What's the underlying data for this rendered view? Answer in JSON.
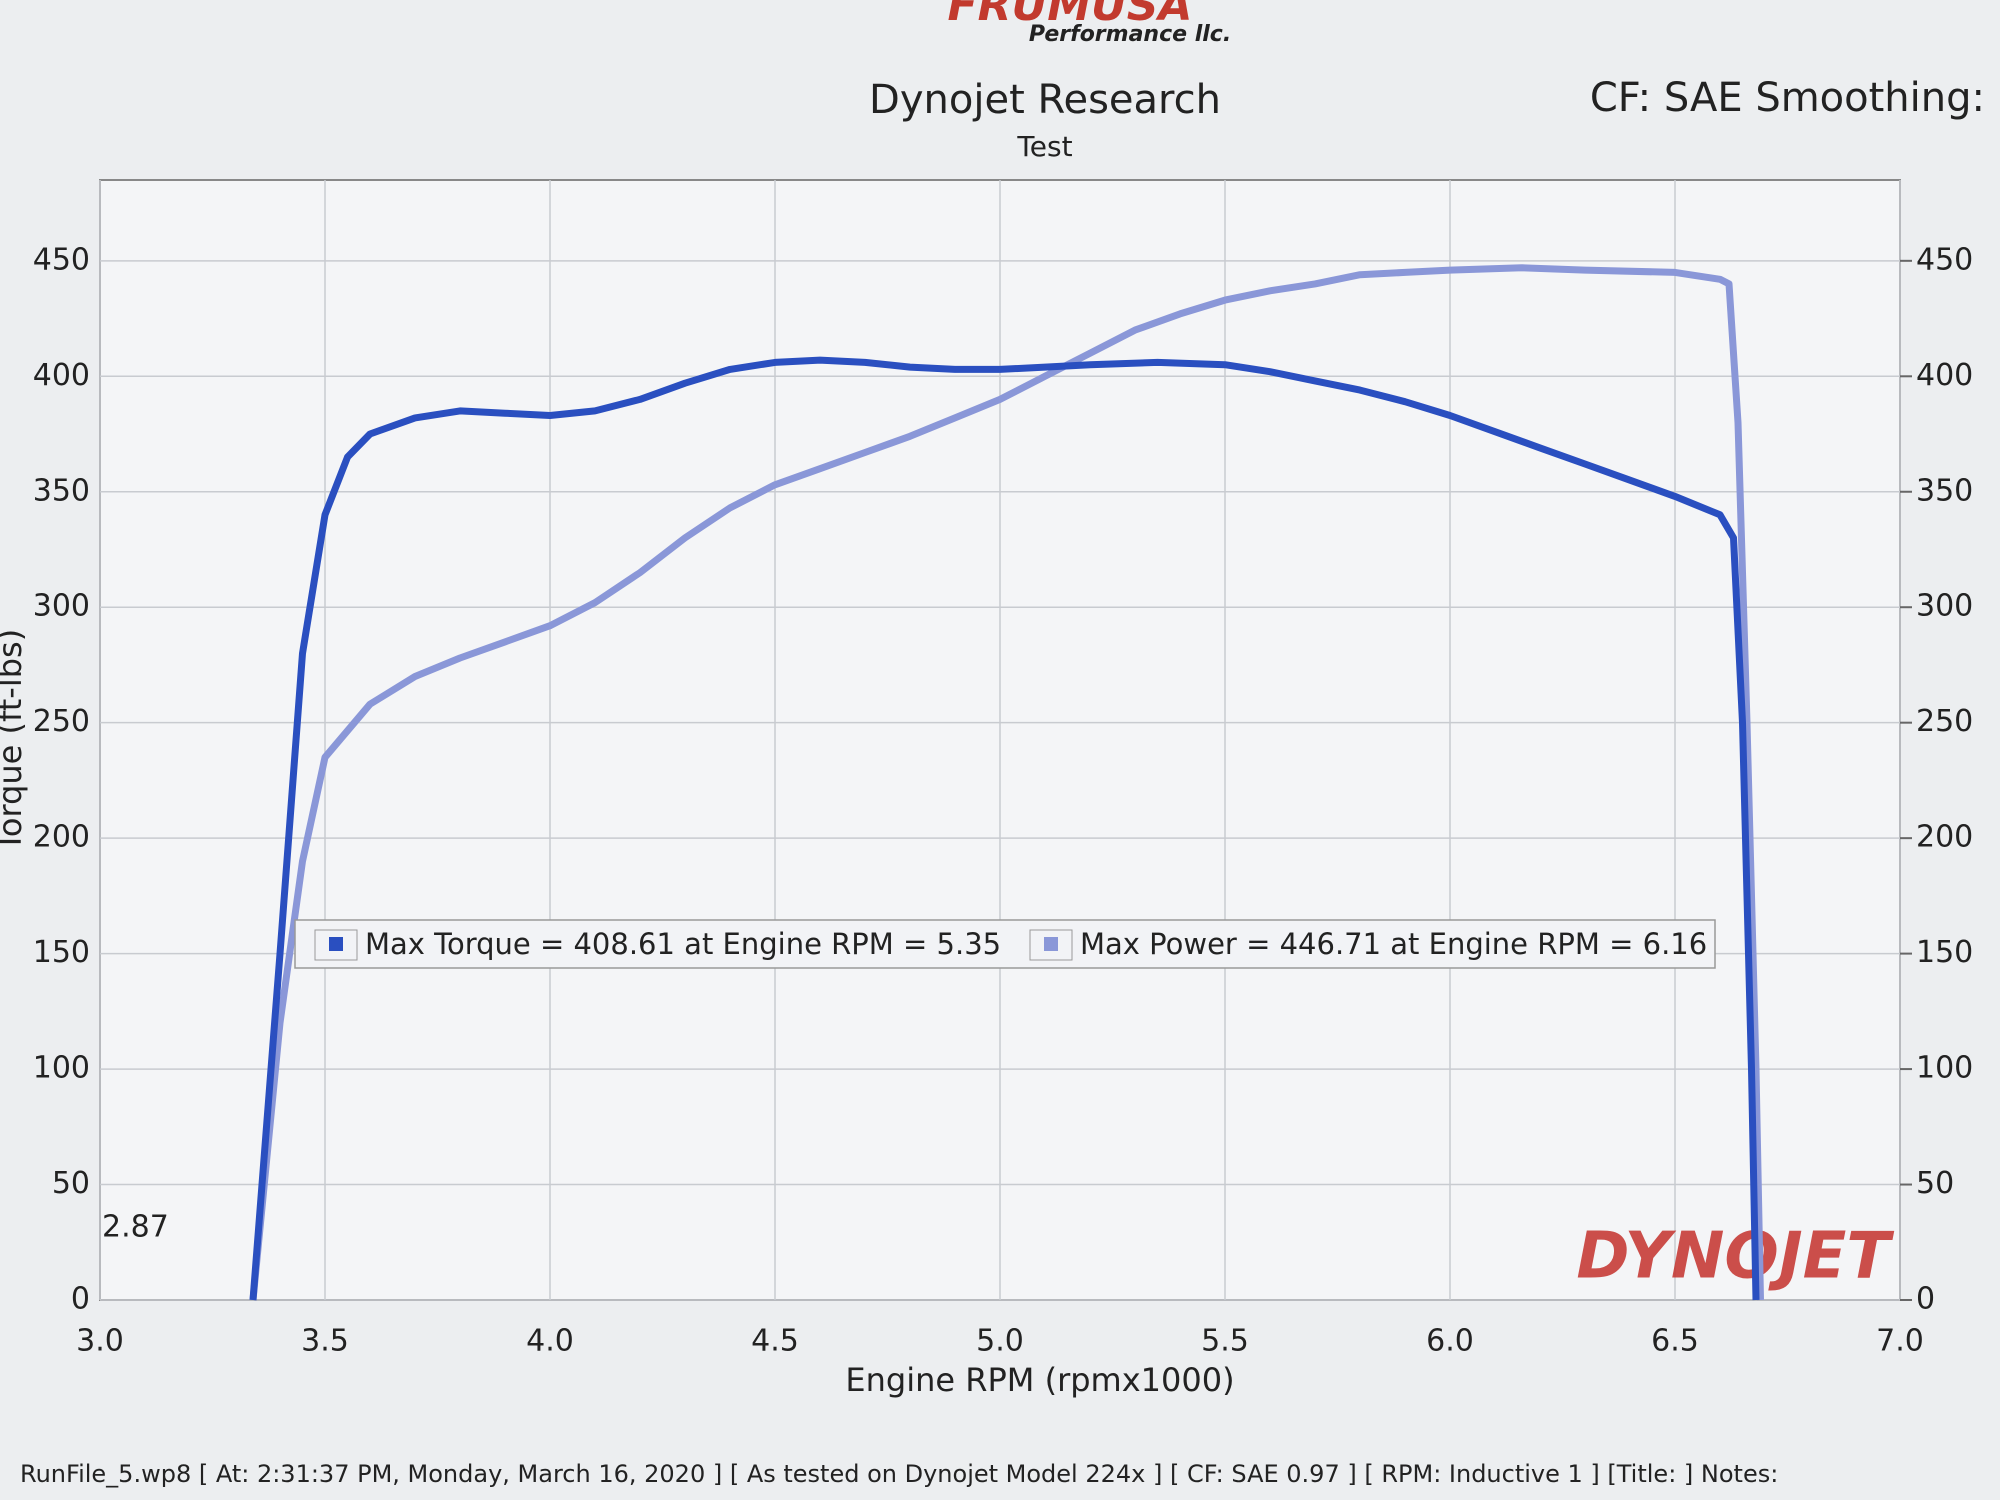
{
  "header": {
    "logo": "FRUMUSA",
    "logo_sub": "Performance llc.",
    "cf": "CF: SAE Smoothing:"
  },
  "footer": "RunFile_5.wp8 [ At: 2:31:37 PM, Monday, March 16, 2020 ] [ As tested on Dynojet Model 224x ] [ CF: SAE 0.97 ] [ RPM: Inductive 1 ] [Title: ]  Notes:",
  "chart_data": {
    "type": "line",
    "title": "Dynojet Research",
    "subtitle": "Test",
    "x_label": "Engine RPM (rpmx1000)",
    "y_label": "Torque (ft-lbs)",
    "annotations": [
      "2.87"
    ],
    "watermark": "DYNOJET",
    "xlim": [
      3,
      7
    ],
    "xticks": [
      {
        "value": 3,
        "label": "3.0"
      },
      3.5,
      {
        "value": 4,
        "label": "4.0"
      },
      4.5,
      {
        "value": 5,
        "label": "5.0"
      },
      5.5,
      {
        "value": 6,
        "label": "6.0"
      },
      6.5,
      {
        "value": 7,
        "label": "7.0"
      }
    ],
    "ylim": [
      0,
      485
    ],
    "yticks": [
      0,
      50,
      100,
      150,
      200,
      250,
      300,
      350,
      400,
      450
    ],
    "y2lim": [
      0,
      485
    ],
    "y2ticks": [
      0,
      50,
      100,
      150,
      200,
      250,
      300,
      350,
      400,
      450
    ],
    "grid": true,
    "legend": "center",
    "series": [
      {
        "name": "Max Torque = 408.61 at Engine RPM = 5.35",
        "color": "#2a4fc0",
        "x": [
          3.34,
          3.4,
          3.45,
          3.5,
          3.55,
          3.6,
          3.7,
          3.8,
          3.9,
          4.0,
          4.1,
          4.2,
          4.3,
          4.4,
          4.5,
          4.6,
          4.7,
          4.8,
          4.9,
          5.0,
          5.1,
          5.2,
          5.35,
          5.5,
          5.6,
          5.7,
          5.8,
          5.9,
          6.0,
          6.1,
          6.2,
          6.3,
          6.4,
          6.5,
          6.6,
          6.63,
          6.65,
          6.67,
          6.68
        ],
        "values": [
          0,
          150,
          280,
          340,
          365,
          375,
          382,
          385,
          384,
          383,
          385,
          390,
          397,
          403,
          406,
          407,
          406,
          404,
          403,
          403,
          404,
          405,
          406,
          405,
          402,
          398,
          394,
          389,
          383,
          376,
          369,
          362,
          355,
          348,
          340,
          330,
          250,
          100,
          0
        ]
      },
      {
        "name": "Max Power = 446.71 at Engine RPM = 6.16",
        "color": "#8a97d8",
        "axis": "y2",
        "x": [
          3.34,
          3.4,
          3.45,
          3.5,
          3.6,
          3.7,
          3.8,
          3.9,
          4.0,
          4.1,
          4.2,
          4.3,
          4.4,
          4.5,
          4.6,
          4.7,
          4.8,
          4.9,
          5.0,
          5.1,
          5.2,
          5.3,
          5.4,
          5.5,
          5.6,
          5.7,
          5.8,
          5.9,
          6.0,
          6.16,
          6.3,
          6.5,
          6.6,
          6.62,
          6.64,
          6.66,
          6.68,
          6.69
        ],
        "values": [
          0,
          120,
          190,
          235,
          258,
          270,
          278,
          285,
          292,
          302,
          315,
          330,
          343,
          353,
          360,
          367,
          374,
          382,
          390,
          400,
          410,
          420,
          427,
          433,
          437,
          440,
          444,
          445,
          446,
          447,
          446,
          445,
          442,
          440,
          380,
          250,
          100,
          0
        ]
      }
    ]
  }
}
